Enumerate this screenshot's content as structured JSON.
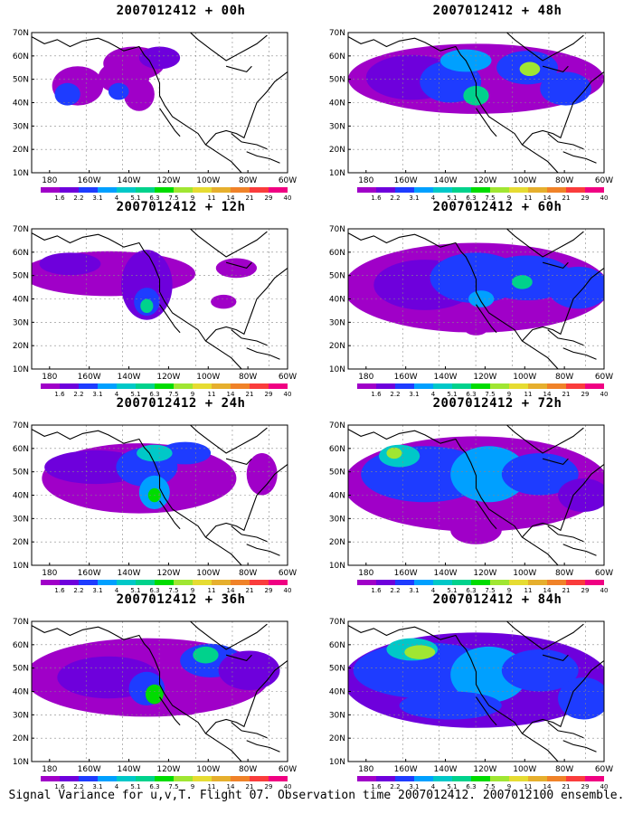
{
  "figure": {
    "caption": "Signal Variance for u,v,T. Flight 07. Observation time 2007012412. 2007012100 ensemble."
  },
  "axes": {
    "lon_ticks": [
      "180",
      "160W",
      "140W",
      "120W",
      "100W",
      "80W",
      "60W"
    ],
    "lat_ticks": [
      "70N",
      "60N",
      "50N",
      "40N",
      "30N",
      "20N",
      "10N"
    ]
  },
  "colorbar": {
    "labels": [
      "1.6",
      "2.2",
      "3.1",
      "4",
      "5.1",
      "6.3",
      "7.5",
      "9",
      "11",
      "14",
      "21",
      "29",
      "40"
    ],
    "colors": [
      "#a000c8",
      "#6e00dc",
      "#1e3cff",
      "#00a0ff",
      "#00c8c8",
      "#00d28c",
      "#00dc00",
      "#a0e632",
      "#e6dc32",
      "#e6af2d",
      "#f08228",
      "#fa3c3c",
      "#f00082"
    ]
  },
  "panels": [
    {
      "id": "p00",
      "title": "2007012412 + 00h",
      "col": 0,
      "row": 0
    },
    {
      "id": "p12",
      "title": "2007012412 + 12h",
      "col": 0,
      "row": 1
    },
    {
      "id": "p24",
      "title": "2007012412 + 24h",
      "col": 0,
      "row": 2
    },
    {
      "id": "p36",
      "title": "2007012412 + 36h",
      "col": 0,
      "row": 3
    },
    {
      "id": "p48",
      "title": "2007012412 + 48h",
      "col": 1,
      "row": 0
    },
    {
      "id": "p60",
      "title": "2007012412 + 60h",
      "col": 1,
      "row": 1
    },
    {
      "id": "p72",
      "title": "2007012412 + 72h",
      "col": 1,
      "row": 2
    },
    {
      "id": "p84",
      "title": "2007012412 + 84h",
      "col": 1,
      "row": 3
    }
  ]
}
